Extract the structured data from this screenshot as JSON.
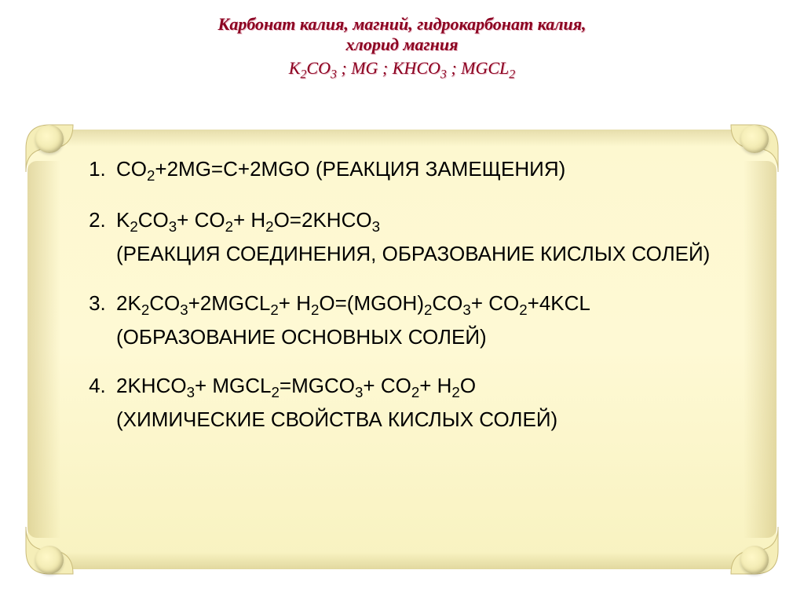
{
  "header": {
    "title_line1": "Карбонат калия, магний, гидрокарбонат калия,",
    "title_line2": "хлорид магния",
    "formula_line": "K₂CO₃   ;   MG   ;   KHCO₃   ;   MGCL₂",
    "title_color": "#8b0020",
    "shadow_color": "#e9b8c4",
    "title_fontsize": 22
  },
  "scroll": {
    "bg_gradient_top": "#fdf8d0",
    "bg_gradient_mid": "#fef9d4",
    "bg_gradient_bottom": "#f8f2c0",
    "roll_highlight": "#fff8c8",
    "roll_shadow": "#d4c888"
  },
  "equations": [
    "CO₂+2MG=C+2MGO (РЕАКЦИЯ ЗАМЕЩЕНИЯ)",
    "K₂CO₃+ CO₂+ H₂O=2KHCO₃\n(РЕАКЦИЯ СОЕДИНЕНИЯ, ОБРАЗОВАНИЕ КИСЛЫХ СОЛЕЙ)",
    "2K₂CO₃+2MGCL₂+ H₂O=(MGOH)₂CO₃+ CO₂+4KCL (ОБРАЗОВАНИЕ ОСНОВНЫХ СОЛЕЙ)",
    "2KHCO₃+ MGCL₂=MGCO₃+ CO₂+ H₂O\n(ХИМИЧЕСКИЕ СВОЙСТВА КИСЛЫХ СОЛЕЙ)"
  ],
  "list": {
    "fontsize": 26,
    "text_color": "#000000",
    "font_family": "Arial"
  }
}
